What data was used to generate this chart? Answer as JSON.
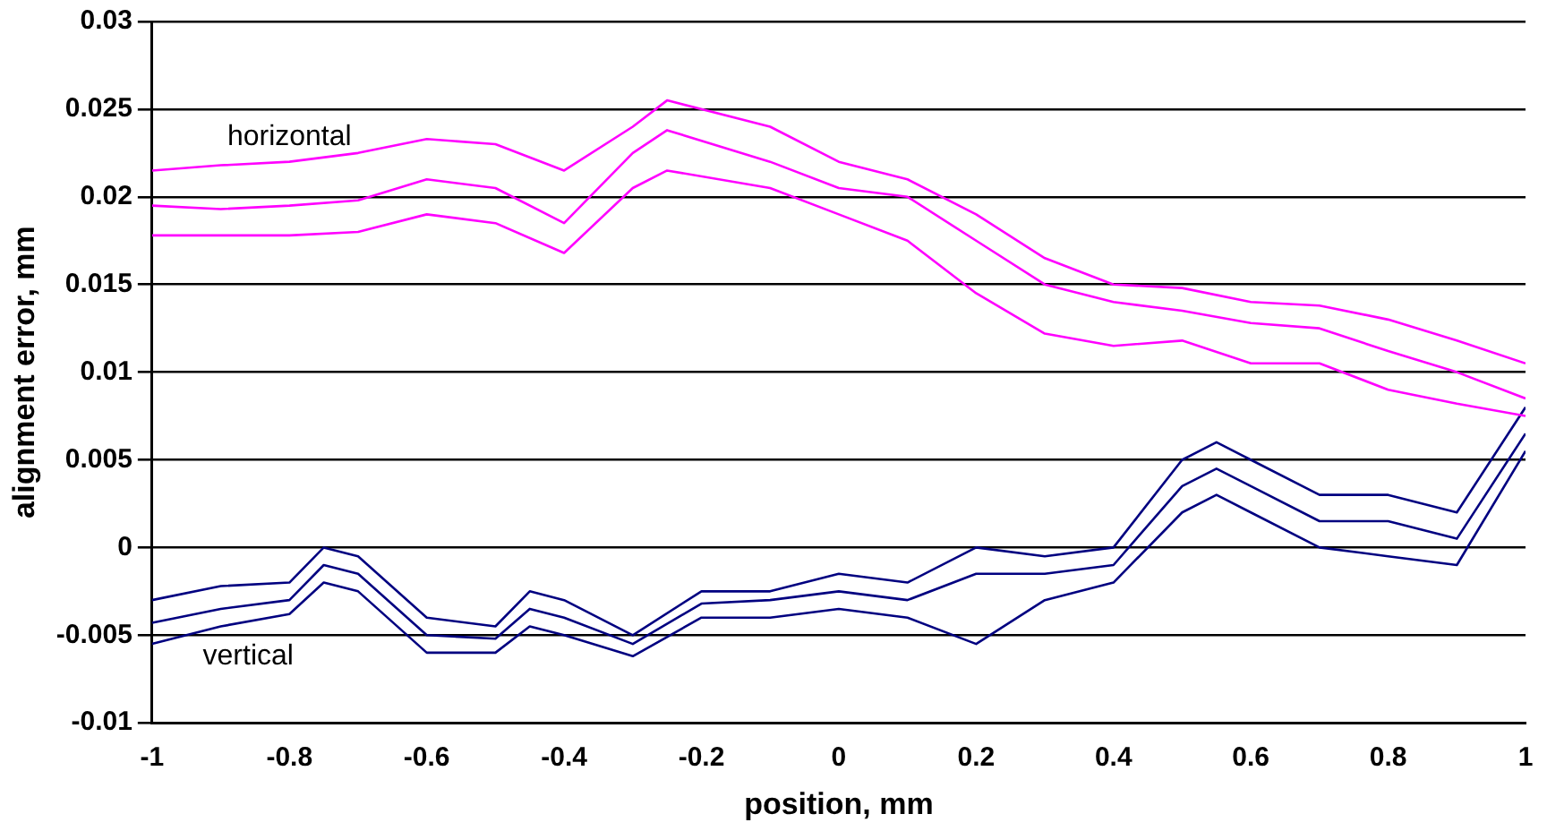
{
  "chart_data": {
    "type": "line",
    "xlabel": "position, mm",
    "ylabel": "alignment error, mm",
    "xlim": [
      -1,
      1
    ],
    "xticks": [
      -1,
      -0.8,
      -0.6,
      -0.4,
      -0.2,
      0,
      0.2,
      0.4,
      0.6,
      0.8,
      1
    ],
    "ylim": [
      -0.01,
      0.03
    ],
    "yticks": [
      -0.01,
      -0.005,
      0,
      0.005,
      0.01,
      0.015,
      0.02,
      0.025,
      0.03
    ],
    "grid": "y",
    "legend": false,
    "marker": "none",
    "line_style": "solid",
    "annotations": [
      "horizontal",
      "vertical"
    ],
    "series": [
      {
        "color": "#ff00ff",
        "x": [
          -1,
          -0.9,
          -0.8,
          -0.7,
          -0.6,
          -0.5,
          -0.4,
          -0.3,
          -0.25,
          -0.1,
          0,
          0.1,
          0.2,
          0.3,
          0.4,
          0.5,
          0.6,
          0.7,
          0.8,
          0.9,
          1
        ],
        "values": [
          0.0215,
          0.0218,
          0.022,
          0.0225,
          0.0233,
          0.023,
          0.0215,
          0.024,
          0.0255,
          0.024,
          0.022,
          0.021,
          0.019,
          0.0165,
          0.015,
          0.0148,
          0.014,
          0.0138,
          0.013,
          0.0118,
          0.0105
        ]
      },
      {
        "color": "#ff00ff",
        "x": [
          -1,
          -0.9,
          -0.8,
          -0.7,
          -0.6,
          -0.5,
          -0.4,
          -0.3,
          -0.25,
          -0.1,
          0,
          0.1,
          0.2,
          0.3,
          0.4,
          0.5,
          0.6,
          0.7,
          0.8,
          0.9,
          1
        ],
        "values": [
          0.0195,
          0.0193,
          0.0195,
          0.0198,
          0.021,
          0.0205,
          0.0185,
          0.0225,
          0.0238,
          0.022,
          0.0205,
          0.02,
          0.0175,
          0.015,
          0.014,
          0.0135,
          0.0128,
          0.0125,
          0.0112,
          0.01,
          0.0085
        ]
      },
      {
        "color": "#ff00ff",
        "x": [
          -1,
          -0.9,
          -0.8,
          -0.7,
          -0.6,
          -0.5,
          -0.4,
          -0.3,
          -0.25,
          -0.1,
          0,
          0.1,
          0.2,
          0.3,
          0.4,
          0.5,
          0.6,
          0.7,
          0.8,
          0.9,
          1
        ],
        "values": [
          0.0178,
          0.0178,
          0.0178,
          0.018,
          0.019,
          0.0185,
          0.0168,
          0.0205,
          0.0215,
          0.0205,
          0.019,
          0.0175,
          0.0145,
          0.0122,
          0.0115,
          0.0118,
          0.0105,
          0.0105,
          0.009,
          0.0082,
          0.0075
        ]
      },
      {
        "color": "#000080",
        "x": [
          -1,
          -0.9,
          -0.8,
          -0.75,
          -0.7,
          -0.6,
          -0.5,
          -0.45,
          -0.4,
          -0.3,
          -0.2,
          -0.1,
          0,
          0.1,
          0.2,
          0.3,
          0.4,
          0.5,
          0.55,
          0.6,
          0.7,
          0.8,
          0.9,
          1
        ],
        "values": [
          -0.003,
          -0.0022,
          -0.002,
          0,
          -0.0005,
          -0.004,
          -0.0045,
          -0.0025,
          -0.003,
          -0.005,
          -0.0025,
          -0.0025,
          -0.0015,
          -0.002,
          0,
          -0.0005,
          0,
          0.005,
          0.006,
          0.005,
          0.003,
          0.003,
          0.002,
          0.008
        ]
      },
      {
        "color": "#000080",
        "x": [
          -1,
          -0.9,
          -0.8,
          -0.75,
          -0.7,
          -0.6,
          -0.5,
          -0.45,
          -0.4,
          -0.3,
          -0.2,
          -0.1,
          0,
          0.1,
          0.2,
          0.3,
          0.4,
          0.5,
          0.55,
          0.6,
          0.7,
          0.8,
          0.9,
          1
        ],
        "values": [
          -0.0043,
          -0.0035,
          -0.003,
          -0.001,
          -0.0015,
          -0.005,
          -0.0052,
          -0.0035,
          -0.004,
          -0.0055,
          -0.0032,
          -0.003,
          -0.0025,
          -0.003,
          -0.0015,
          -0.0015,
          -0.001,
          0.0035,
          0.0045,
          0.0035,
          0.0015,
          0.0015,
          0.0005,
          0.0065
        ]
      },
      {
        "color": "#000080",
        "x": [
          -1,
          -0.9,
          -0.8,
          -0.75,
          -0.7,
          -0.6,
          -0.5,
          -0.45,
          -0.4,
          -0.3,
          -0.2,
          -0.1,
          0,
          0.1,
          0.2,
          0.3,
          0.4,
          0.5,
          0.55,
          0.6,
          0.7,
          0.8,
          0.9,
          1
        ],
        "values": [
          -0.0055,
          -0.0045,
          -0.0038,
          -0.002,
          -0.0025,
          -0.006,
          -0.006,
          -0.0045,
          -0.005,
          -0.0062,
          -0.004,
          -0.004,
          -0.0035,
          -0.004,
          -0.0055,
          -0.003,
          -0.002,
          0.002,
          0.003,
          0.002,
          0,
          -0.0005,
          -0.001,
          0.0055
        ]
      }
    ]
  }
}
